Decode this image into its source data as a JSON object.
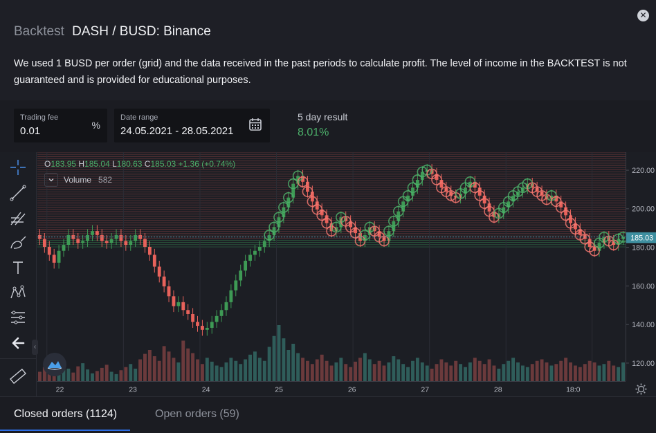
{
  "header": {
    "title_prefix": "Backtest",
    "title_pair": "DASH / BUSD: Binance",
    "description": "We used 1 BUSD per order (grid) and the data received in the past periods to calculate profit. The level of income in the BACKTEST is not guaranteed and is provided for educational purposes."
  },
  "params": {
    "trading_fee": {
      "label": "Trading fee",
      "value": "0.01",
      "unit": "%"
    },
    "date_range": {
      "label": "Date range",
      "value": "24.05.2021 - 28.05.2021"
    },
    "result": {
      "label": "5 day result",
      "value": "8.01%"
    }
  },
  "chart": {
    "ohlc": {
      "o": "183.95",
      "h": "185.04",
      "l": "180.63",
      "c": "185.03",
      "change": "+1.36 (+0.74%)"
    },
    "volume": {
      "label": "Volume",
      "value": "582"
    },
    "current_price_tag": "185.03",
    "colors": {
      "up": "#3e9a55",
      "down": "#e8625b",
      "price_tag": "#3e8fa0"
    }
  },
  "chart_data": {
    "type": "candlestick",
    "title": "DASH / BUSD: Binance",
    "ylim": [
      112,
      228
    ],
    "price_ticks": [
      "220.00",
      "200.00",
      "180.00",
      "160.00",
      "140.00",
      "120.00"
    ],
    "time_ticks": [
      "22",
      "23",
      "24",
      "25",
      "26",
      "27",
      "28",
      "18:0"
    ],
    "grid_levels": {
      "from": 180,
      "to": 228,
      "count": 44
    },
    "close_series": [
      184,
      180,
      176,
      172,
      178,
      181,
      186,
      184,
      182,
      183,
      186,
      188,
      186,
      183,
      182,
      184,
      186,
      183,
      181,
      183,
      186,
      184,
      180,
      176,
      170,
      165,
      160,
      155,
      150,
      152,
      148,
      146,
      142,
      140,
      138,
      139,
      142,
      145,
      148,
      152,
      158,
      163,
      168,
      173,
      176,
      178,
      180,
      183,
      186,
      190,
      195,
      200,
      205,
      212,
      216,
      213,
      208,
      203,
      199,
      196,
      192,
      188,
      190,
      195,
      193,
      190,
      187,
      183,
      186,
      190,
      188,
      185,
      183,
      188,
      193,
      198,
      203,
      206,
      210,
      214,
      218,
      219,
      217,
      214,
      210,
      208,
      206,
      205,
      207,
      210,
      213,
      210,
      206,
      202,
      198,
      195,
      197,
      200,
      203,
      206,
      208,
      210,
      212,
      210,
      208,
      206,
      204,
      206,
      203,
      200,
      196,
      192,
      189,
      186,
      184,
      180,
      178,
      182,
      185,
      183,
      181,
      184,
      185
    ],
    "volume_series": [
      12,
      18,
      9,
      14,
      20,
      25,
      16,
      11,
      19,
      23,
      15,
      10,
      13,
      17,
      21,
      12,
      9,
      14,
      18,
      22,
      16,
      28,
      35,
      40,
      32,
      26,
      45,
      38,
      30,
      24,
      52,
      42,
      36,
      28,
      22,
      30,
      25,
      20,
      18,
      24,
      30,
      26,
      22,
      28,
      34,
      38,
      30,
      26,
      44,
      58,
      72,
      55,
      40,
      48,
      36,
      30,
      26,
      22,
      28,
      34,
      26,
      20,
      24,
      30,
      22,
      18,
      25,
      30,
      36,
      28,
      22,
      26,
      20,
      24,
      32,
      28,
      22,
      18,
      26,
      30,
      24,
      20,
      16,
      22,
      28,
      24,
      20,
      26,
      22,
      18,
      24,
      30,
      26,
      22,
      28,
      20,
      16,
      22,
      26,
      30,
      24,
      20,
      18,
      22,
      26,
      28,
      24,
      20,
      22,
      26,
      30,
      24,
      20,
      18,
      22,
      26,
      24,
      20,
      22,
      26,
      20,
      18,
      24
    ]
  },
  "tabs": {
    "closed": "Closed orders (1124)",
    "open": "Open orders (59)"
  }
}
